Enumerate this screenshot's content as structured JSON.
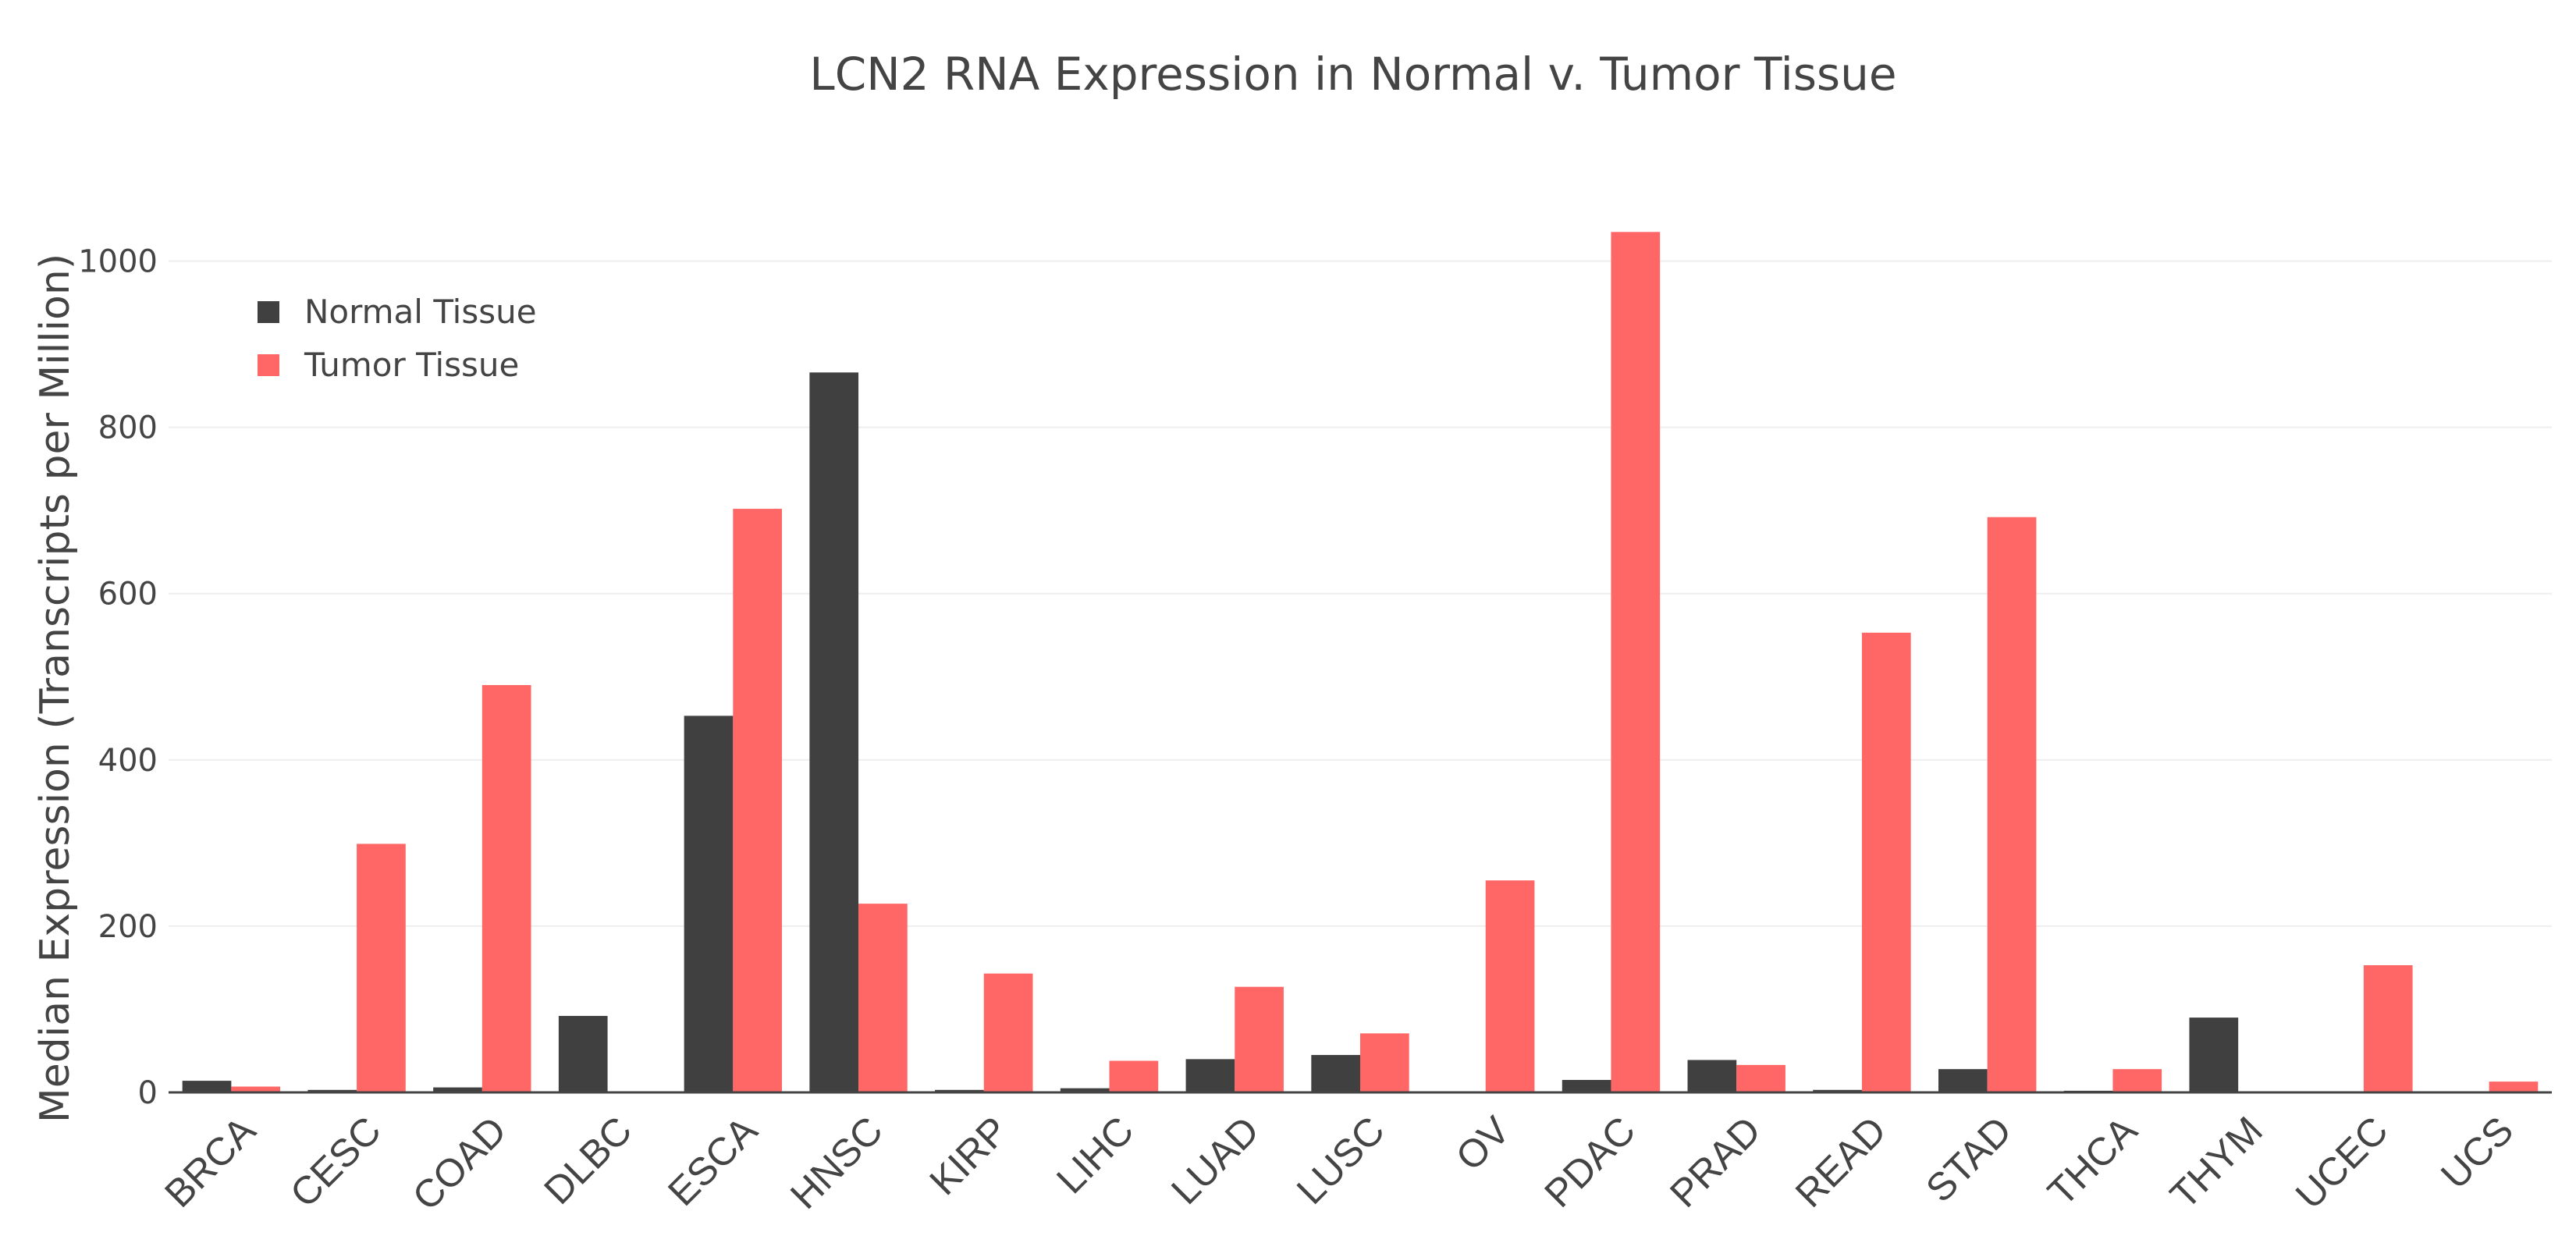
{
  "chart_data": {
    "type": "bar",
    "title": "LCN2 RNA Expression in Normal v. Tumor Tissue",
    "xlabel": "",
    "ylabel": "Median Expression (Transcripts per Million)",
    "ylim": [
      0,
      1070
    ],
    "yticks": [
      0,
      200,
      400,
      600,
      800,
      1000
    ],
    "grid": true,
    "legend_position": "top-left",
    "categories": [
      "BRCA",
      "CESC",
      "COAD",
      "DLBC",
      "ESCA",
      "HNSC",
      "KIRP",
      "LIHC",
      "LUAD",
      "LUSC",
      "OV",
      "PDAC",
      "PRAD",
      "READ",
      "STAD",
      "THCA",
      "THYM",
      "UCEC",
      "UCS"
    ],
    "series": [
      {
        "name": "Normal Tissue",
        "color": "#404040",
        "values": [
          14,
          3,
          6,
          92,
          453,
          866,
          3,
          5,
          40,
          45,
          0,
          15,
          39,
          3,
          28,
          2,
          90,
          0,
          0
        ]
      },
      {
        "name": "Tumor Tissue",
        "color": "#ff6666",
        "values": [
          7,
          299,
          490,
          0,
          702,
          227,
          143,
          38,
          127,
          71,
          255,
          1035,
          33,
          553,
          692,
          28,
          0,
          153,
          13
        ]
      }
    ]
  }
}
